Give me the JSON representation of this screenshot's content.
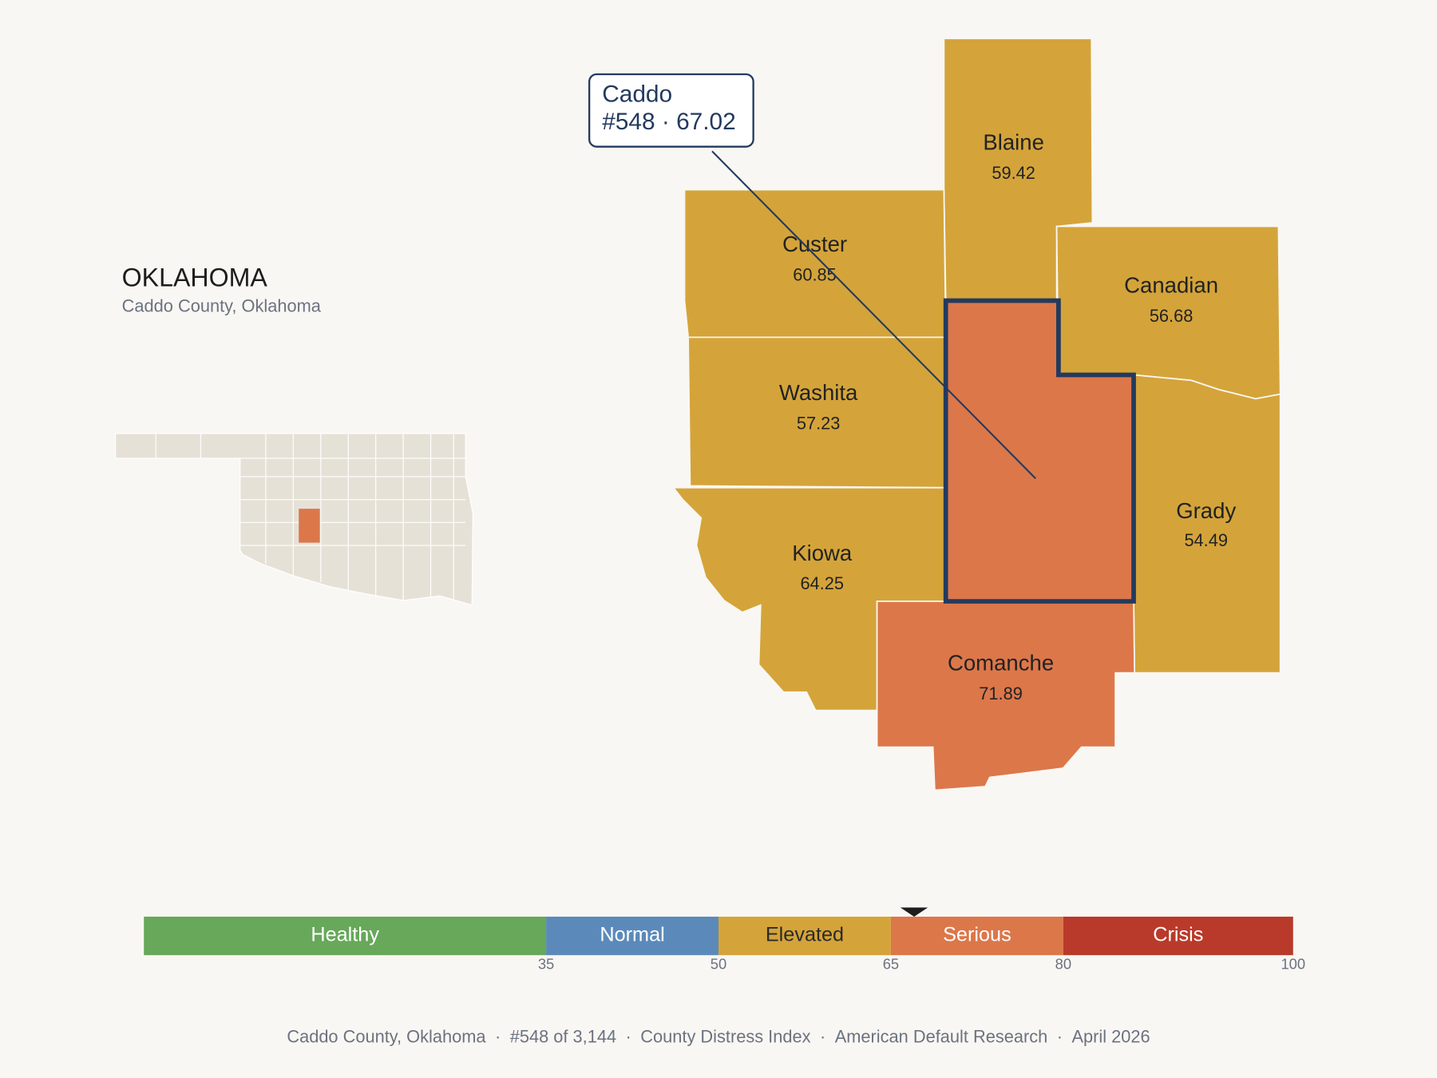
{
  "header": {
    "title": "OKLAHOMA",
    "subtitle": "Caddo County, Oklahoma"
  },
  "map": {
    "focus": {
      "name": "Caddo",
      "rank": "#548",
      "score": 67.02,
      "separator": "·",
      "color": "#dc774a"
    },
    "counties": [
      {
        "name": "Blaine",
        "value": 59.42,
        "color": "#d4a43a"
      },
      {
        "name": "Custer",
        "value": 60.85,
        "color": "#d4a43a"
      },
      {
        "name": "Washita",
        "value": 57.23,
        "color": "#d4a43a"
      },
      {
        "name": "Kiowa",
        "value": 64.25,
        "color": "#d4a43a"
      },
      {
        "name": "Canadian",
        "value": 56.68,
        "color": "#d4a43a"
      },
      {
        "name": "Grady",
        "value": 54.49,
        "color": "#d4a43a"
      },
      {
        "name": "Comanche",
        "value": 71.89,
        "color": "#dc774a"
      }
    ]
  },
  "scale": {
    "xlim": [
      0,
      100
    ],
    "ticks": [
      35,
      50,
      65,
      80,
      100
    ],
    "bands": [
      {
        "name": "Healthy",
        "color": "#67a85a",
        "label_color": "#ffffff"
      },
      {
        "name": "Normal",
        "color": "#5b8aba",
        "label_color": "#ffffff"
      },
      {
        "name": "Elevated",
        "color": "#d4a43a",
        "label_color": "#2a2a2a"
      },
      {
        "name": "Serious",
        "color": "#dc774a",
        "label_color": "#ffffff"
      },
      {
        "name": "Crisis",
        "color": "#b93a2a",
        "label_color": "#ffffff"
      }
    ]
  },
  "footer": {
    "items": [
      "Caddo County, Oklahoma",
      "#548 of 3,144",
      "County Distress Index",
      "American Default Research",
      "April 2026"
    ],
    "separator": "·"
  }
}
